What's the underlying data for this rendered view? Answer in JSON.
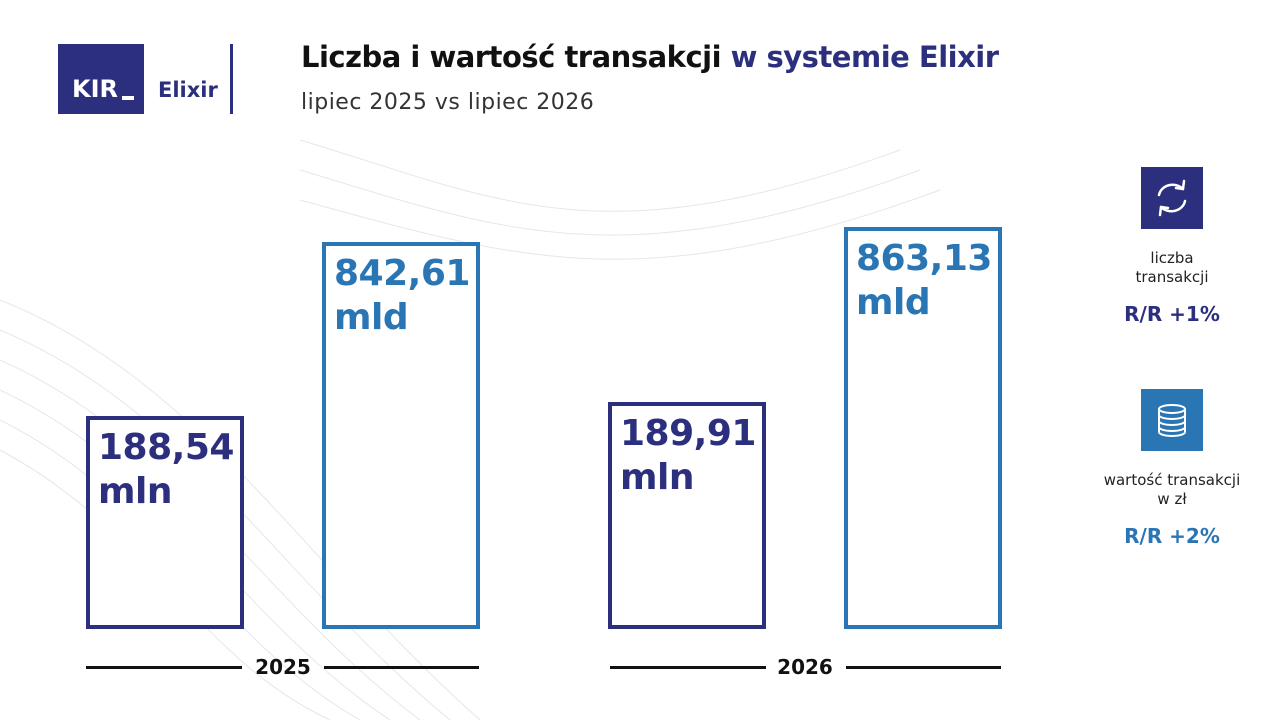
{
  "logo": {
    "kir": "KIR",
    "brand": "Elixir"
  },
  "header": {
    "title": "Liczba i wartość transakcji",
    "title_accent": "w systemie Elixir",
    "subtitle": "lipiec 2025 vs lipiec 2026"
  },
  "groups": [
    {
      "label": "2025",
      "items": [
        {
          "value": "188,54",
          "unit": "mln"
        },
        {
          "value": "842,61",
          "unit": "mld"
        }
      ]
    },
    {
      "label": "2026",
      "items": [
        {
          "value": "189,91",
          "unit": "mln"
        },
        {
          "value": "863,13",
          "unit": "mld"
        }
      ]
    }
  ],
  "legend": [
    {
      "label": "liczba transakcji",
      "change": "R/R +1%"
    },
    {
      "label": "wartość transakcji w zł",
      "change": "R/R +2%"
    }
  ]
}
